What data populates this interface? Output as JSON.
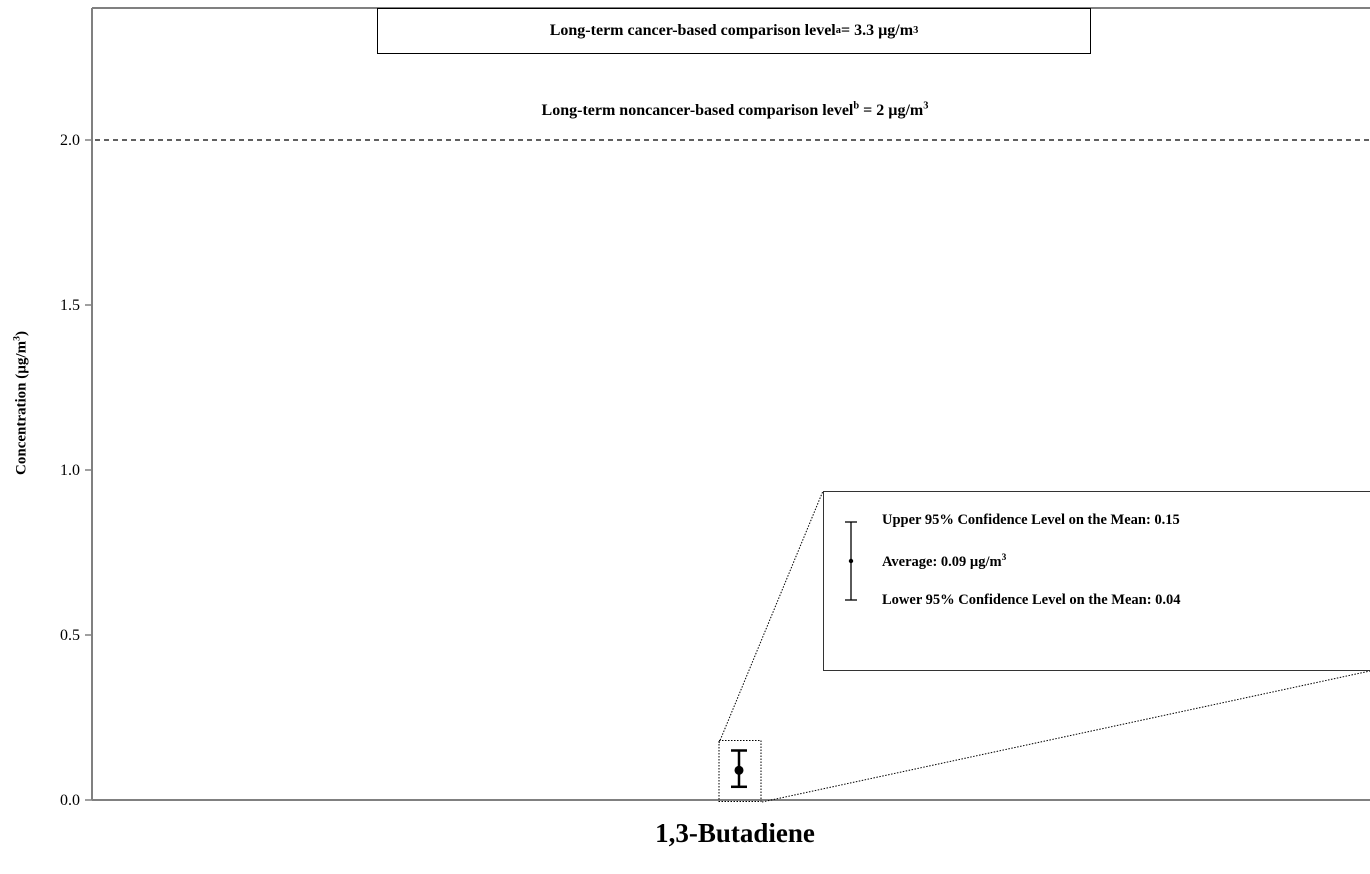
{
  "chart_data": {
    "type": "scatter",
    "categories": [
      "1,3-Butadiene"
    ],
    "ylabel": "Concentration (µg/m",
    "ylabel_sup": "3",
    "ylabel_tail": ")",
    "ylim": [
      0,
      2.4
    ],
    "yticks": [
      "0.0",
      "0.5",
      "1.0",
      "1.5",
      "2.0"
    ],
    "ytick_values": [
      0.0,
      0.5,
      1.0,
      1.5,
      2.0
    ],
    "grid": false,
    "points": [
      {
        "category": "1,3-Butadiene",
        "average": 0.09,
        "lower_95": 0.04,
        "upper_95": 0.15
      }
    ],
    "reference_lines": [
      {
        "value": 2,
        "style": "dashed",
        "text": "Long-term noncancer-based comparison level",
        "sup": "b",
        "tail": " = 2 µg/m",
        "tail_sup": "3"
      }
    ],
    "offscale_reference": {
      "value": 3.3,
      "text": "Long-term cancer-based comparison level",
      "sup": "a",
      "tail": " = 3.3 µg/m",
      "tail_sup": "3"
    },
    "legend": {
      "upper": "Upper 95% Confidence Level on the Mean: 0.15",
      "average": "Average:  0.09 µg/m",
      "average_sup": "3",
      "lower": "Lower 95% Confidence Level on the Mean:  0.04"
    }
  }
}
